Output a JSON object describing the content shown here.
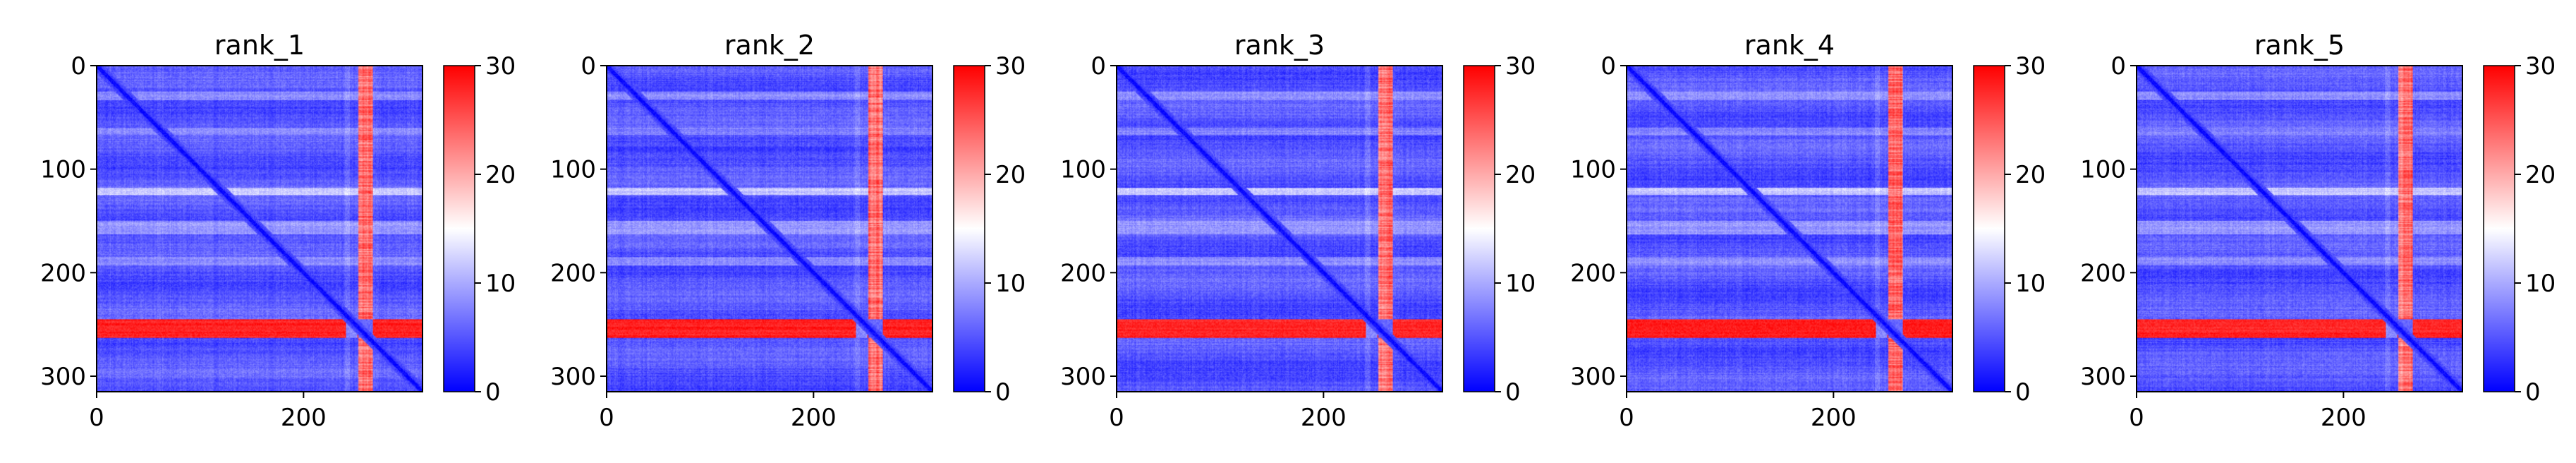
{
  "figure": {
    "colormap": {
      "name": "bwr",
      "low": "#0000ff",
      "mid": "#ffffff",
      "high": "#ff0000"
    }
  },
  "chart_data": [
    {
      "type": "heatmap",
      "title": "rank_1",
      "n": 315,
      "xticks": [
        0,
        200
      ],
      "yticks": [
        0,
        100,
        200,
        300
      ],
      "xlim": [
        0,
        315
      ],
      "ylim": [
        315,
        0
      ],
      "colorbar": {
        "min": 0,
        "max": 30,
        "ticks": [
          0,
          10,
          20,
          30
        ]
      }
    },
    {
      "type": "heatmap",
      "title": "rank_2",
      "n": 315,
      "xticks": [
        0,
        200
      ],
      "yticks": [
        0,
        100,
        200,
        300
      ],
      "xlim": [
        0,
        315
      ],
      "ylim": [
        315,
        0
      ],
      "colorbar": {
        "min": 0,
        "max": 30,
        "ticks": [
          0,
          10,
          20,
          30
        ]
      }
    },
    {
      "type": "heatmap",
      "title": "rank_3",
      "n": 315,
      "xticks": [
        0,
        200
      ],
      "yticks": [
        0,
        100,
        200,
        300
      ],
      "xlim": [
        0,
        315
      ],
      "ylim": [
        315,
        0
      ],
      "colorbar": {
        "min": 0,
        "max": 30,
        "ticks": [
          0,
          10,
          20,
          30
        ]
      }
    },
    {
      "type": "heatmap",
      "title": "rank_4",
      "n": 315,
      "xticks": [
        0,
        200
      ],
      "yticks": [
        0,
        100,
        200,
        300
      ],
      "xlim": [
        0,
        315
      ],
      "ylim": [
        315,
        0
      ],
      "colorbar": {
        "min": 0,
        "max": 30,
        "ticks": [
          0,
          10,
          20,
          30
        ]
      }
    },
    {
      "type": "heatmap",
      "title": "rank_5",
      "n": 315,
      "xticks": [
        0,
        200
      ],
      "yticks": [
        0,
        100,
        200,
        300
      ],
      "xlim": [
        0,
        315
      ],
      "ylim": [
        315,
        0
      ],
      "colorbar": {
        "min": 0,
        "max": 30,
        "ticks": [
          0,
          10,
          20,
          30
        ]
      }
    }
  ]
}
